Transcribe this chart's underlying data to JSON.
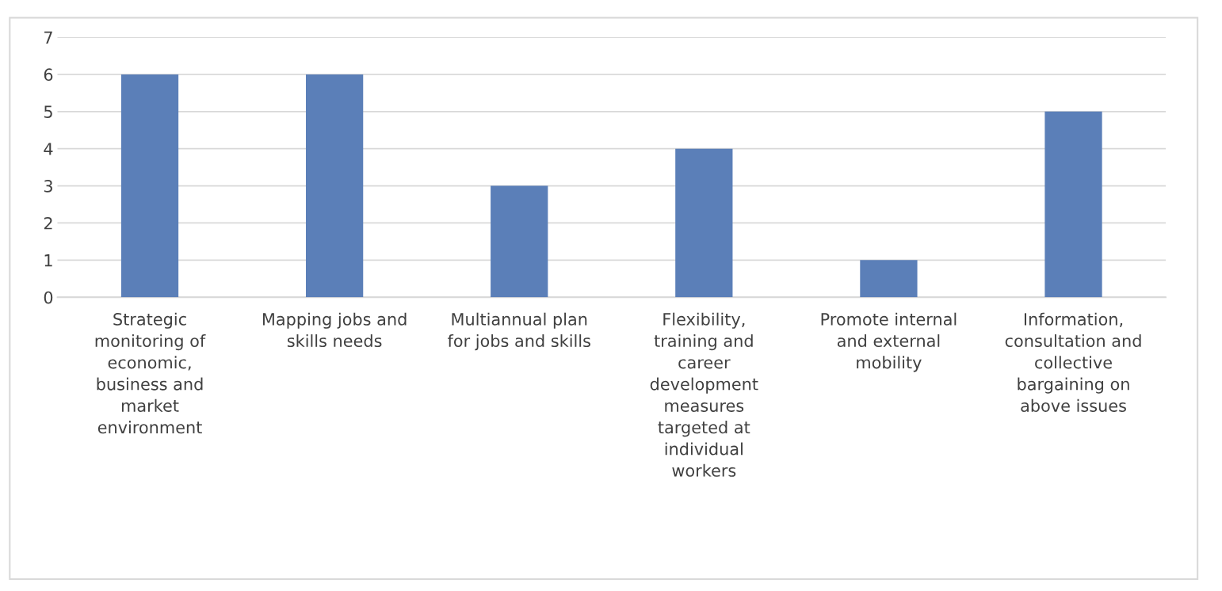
{
  "chart_data": {
    "type": "bar",
    "categories": [
      "Strategic\nmonitoring of\neconomic,\nbusiness and\nmarket\nenvironment",
      "Mapping jobs and\nskills needs",
      "Multiannual plan\nfor jobs and skills",
      "Flexibility,\ntraining and\ncareer\ndevelopment\nmeasures\ntargeted at\nindividual\nworkers",
      "Promote internal\nand external\nmobility",
      "Information,\nconsultation and\ncollective\nbargaining on\nabove issues"
    ],
    "values": [
      6,
      6,
      3,
      4,
      1,
      5
    ],
    "color": "#5b7fb8",
    "ylim": [
      0,
      7
    ],
    "yticks": [
      0,
      1,
      2,
      3,
      4,
      5,
      6,
      7
    ],
    "grid": "y"
  }
}
